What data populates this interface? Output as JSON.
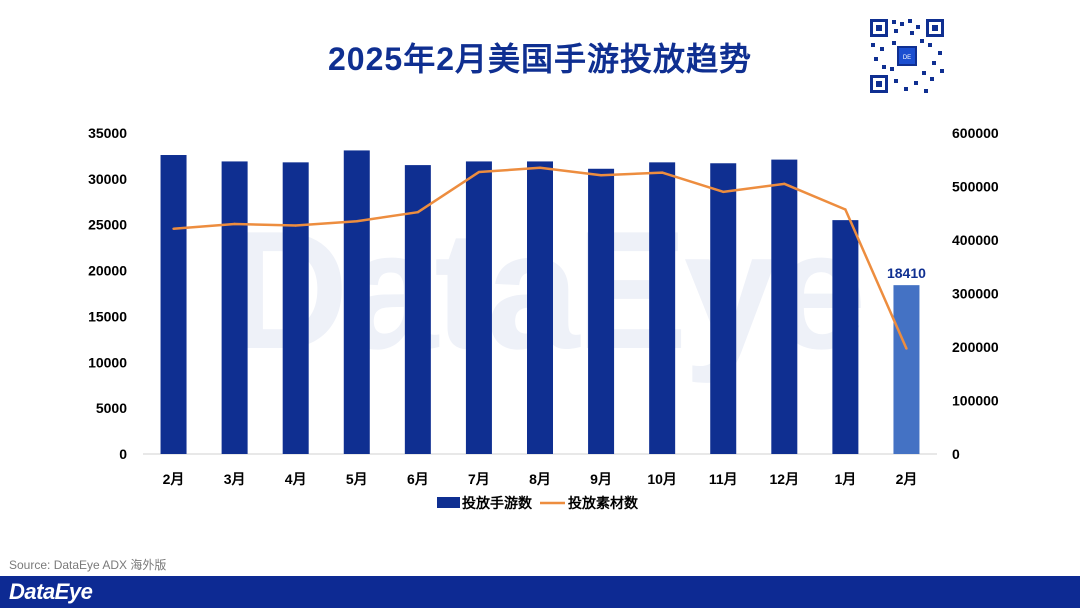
{
  "header": {
    "title": "2025年2月美国手游投放趋势"
  },
  "watermark_text": "DataEye",
  "source_text": "Source: DataEye ADX 海外版",
  "footer": {
    "brand": "DataEye"
  },
  "colors": {
    "primary_bar": "#0f2f91",
    "highlight_bar": "#4472c4",
    "line": "#ed8d3f",
    "title": "#0f2f91",
    "footer_bg": "#0d2a93"
  },
  "qr_icon_label": "qr-code-icon",
  "chart_data": {
    "type": "bar+line",
    "categories": [
      "2月",
      "3月",
      "4月",
      "5月",
      "6月",
      "7月",
      "8月",
      "9月",
      "10月",
      "11月",
      "12月",
      "1月",
      "2月"
    ],
    "series": [
      {
        "name": "投放手游数",
        "type": "bar",
        "axis": "left",
        "values": [
          32600,
          31900,
          31800,
          33100,
          31500,
          31900,
          31900,
          31100,
          31800,
          31700,
          32100,
          25500,
          18410
        ]
      },
      {
        "name": "投放素材数",
        "type": "line",
        "axis": "right",
        "values": [
          421000,
          430000,
          427000,
          435000,
          452000,
          527000,
          535000,
          521000,
          526000,
          490000,
          505000,
          457000,
          197000
        ]
      }
    ],
    "highlight_index": 12,
    "data_labels": [
      {
        "index": 12,
        "text": "18410"
      }
    ],
    "y_left": {
      "min": 0,
      "max": 35000,
      "ticks": [
        "0",
        "5000",
        "10000",
        "15000",
        "20000",
        "25000",
        "30000",
        "35000"
      ]
    },
    "y_right": {
      "min": 0,
      "max": 600000,
      "ticks": [
        "0",
        "100000",
        "200000",
        "300000",
        "400000",
        "500000",
        "600000"
      ]
    },
    "legend": {
      "position": "bottom",
      "items": [
        "投放手游数",
        "投放素材数"
      ]
    },
    "grid": false
  }
}
